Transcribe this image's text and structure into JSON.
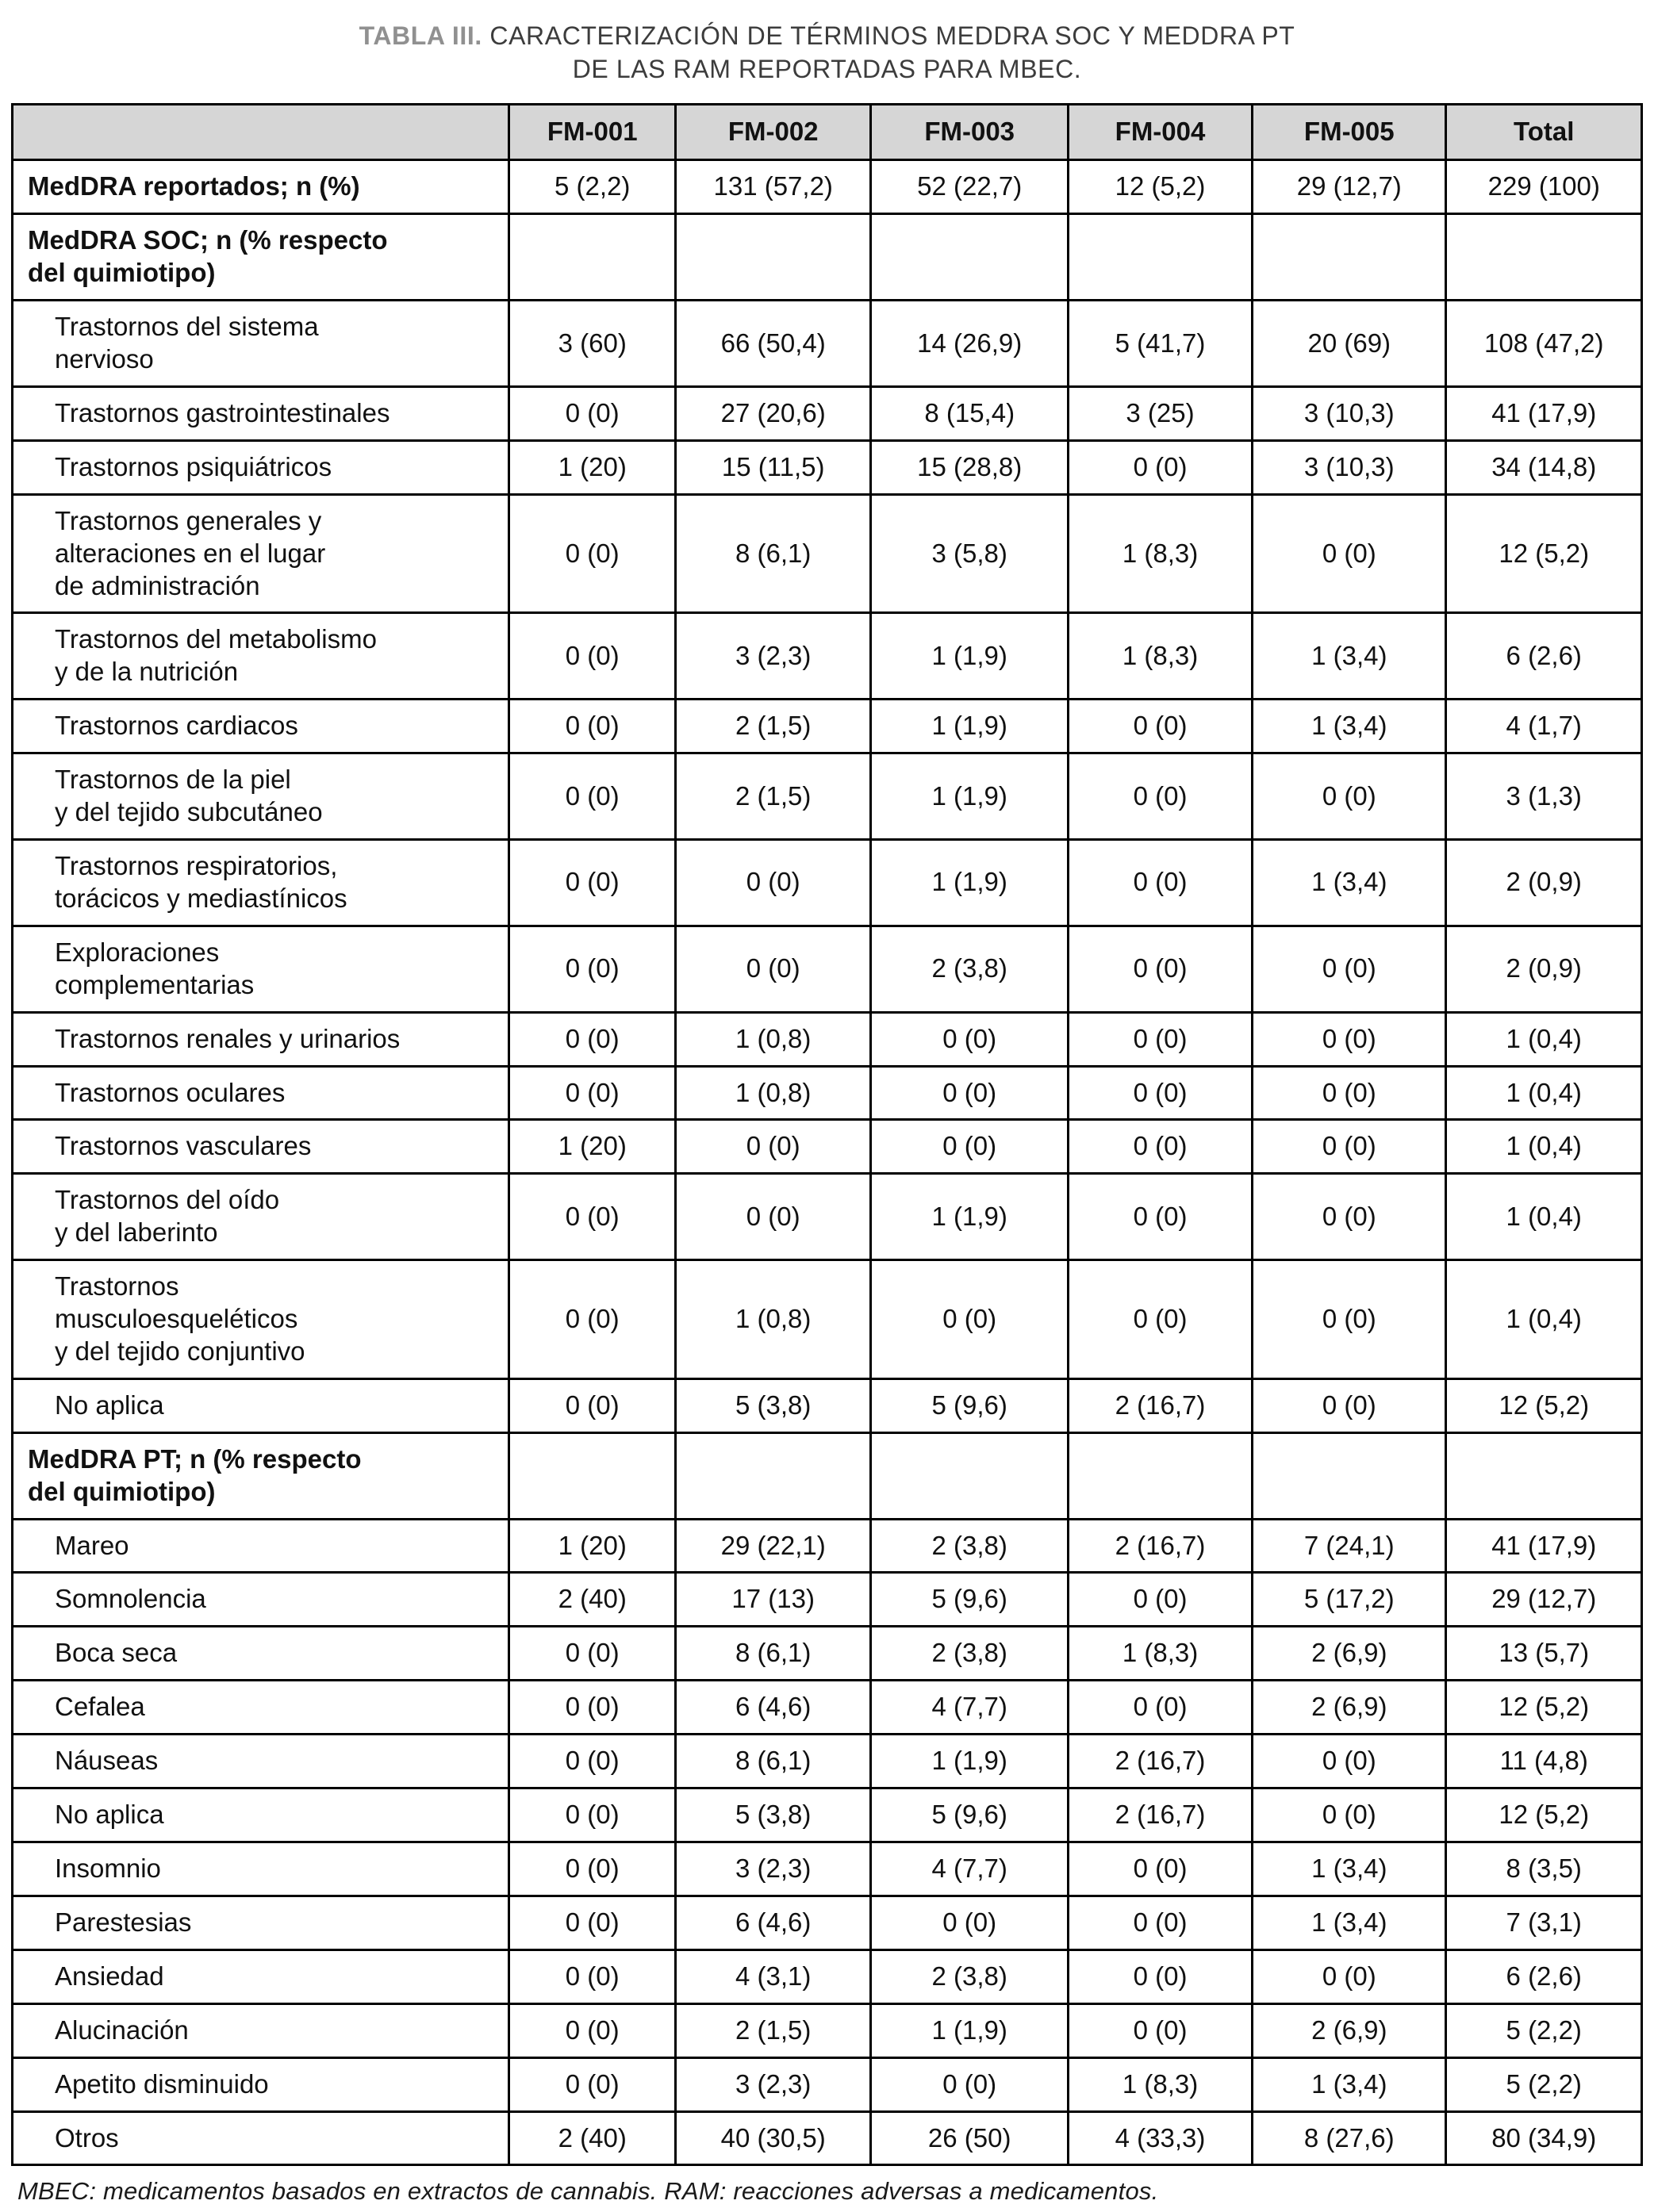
{
  "title": {
    "label": "TABLA III.",
    "line1": "CARACTERIZACIÓN DE TÉRMINOS MEDDRA SOC Y MEDDRA PT",
    "line2": "DE LAS RAM REPORTADAS PARA MBEC."
  },
  "footnote": "MBEC: medicamentos basados en extractos de cannabis. RAM: reacciones adversas a medicamentos.",
  "table": {
    "columns": [
      "",
      "FM-001",
      "FM-002",
      "FM-003",
      "FM-004",
      "FM-005",
      "Total"
    ],
    "rows": [
      {
        "type": "section",
        "label": "MedDRA reportados; n (%)",
        "values": [
          "5 (2,2)",
          "131 (57,2)",
          "52 (22,7)",
          "12 (5,2)",
          "29 (12,7)",
          "229 (100)"
        ]
      },
      {
        "type": "section",
        "label": "MedDRA SOC; n (% respecto\ndel quimiotipo)",
        "values": [
          "",
          "",
          "",
          "",
          "",
          ""
        ]
      },
      {
        "type": "data",
        "label": "Trastornos del sistema\nnervioso",
        "values": [
          "3 (60)",
          "66 (50,4)",
          "14 (26,9)",
          "5 (41,7)",
          "20 (69)",
          "108 (47,2)"
        ]
      },
      {
        "type": "data",
        "label": "Trastornos gastrointestinales",
        "values": [
          "0 (0)",
          "27 (20,6)",
          "8 (15,4)",
          "3 (25)",
          "3 (10,3)",
          "41 (17,9)"
        ]
      },
      {
        "type": "data",
        "label": "Trastornos psiquiátricos",
        "values": [
          "1 (20)",
          "15 (11,5)",
          "15 (28,8)",
          "0 (0)",
          "3 (10,3)",
          "34 (14,8)"
        ]
      },
      {
        "type": "data",
        "label": "Trastornos generales y\nalteraciones en el lugar\nde administración",
        "values": [
          "0 (0)",
          "8 (6,1)",
          "3 (5,8)",
          "1 (8,3)",
          "0 (0)",
          "12 (5,2)"
        ]
      },
      {
        "type": "data",
        "label": "Trastornos del metabolismo\ny de la nutrición",
        "values": [
          "0 (0)",
          "3 (2,3)",
          "1 (1,9)",
          "1 (8,3)",
          "1 (3,4)",
          "6 (2,6)"
        ]
      },
      {
        "type": "data",
        "label": "Trastornos cardiacos",
        "values": [
          "0 (0)",
          "2 (1,5)",
          "1 (1,9)",
          "0 (0)",
          "1 (3,4)",
          "4 (1,7)"
        ]
      },
      {
        "type": "data",
        "label": "Trastornos de la piel\ny del tejido subcutáneo",
        "values": [
          "0 (0)",
          "2 (1,5)",
          "1 (1,9)",
          "0 (0)",
          "0 (0)",
          "3 (1,3)"
        ]
      },
      {
        "type": "data",
        "label": "Trastornos respiratorios,\ntorácicos y mediastínicos",
        "values": [
          "0 (0)",
          "0 (0)",
          "1 (1,9)",
          "0 (0)",
          "1 (3,4)",
          "2 (0,9)"
        ]
      },
      {
        "type": "data",
        "label": "Exploraciones\ncomplementarias",
        "values": [
          "0 (0)",
          "0 (0)",
          "2 (3,8)",
          "0 (0)",
          "0 (0)",
          "2 (0,9)"
        ]
      },
      {
        "type": "data",
        "label": "Trastornos renales y urinarios",
        "values": [
          "0 (0)",
          "1 (0,8)",
          "0 (0)",
          "0 (0)",
          "0 (0)",
          "1 (0,4)"
        ]
      },
      {
        "type": "data",
        "label": "Trastornos oculares",
        "values": [
          "0 (0)",
          "1 (0,8)",
          "0 (0)",
          "0 (0)",
          "0 (0)",
          "1 (0,4)"
        ]
      },
      {
        "type": "data",
        "label": "Trastornos vasculares",
        "values": [
          "1 (20)",
          "0 (0)",
          "0 (0)",
          "0 (0)",
          "0 (0)",
          "1 (0,4)"
        ]
      },
      {
        "type": "data",
        "label": "Trastornos del oído\ny del laberinto",
        "values": [
          "0 (0)",
          "0 (0)",
          "1 (1,9)",
          "0 (0)",
          "0 (0)",
          "1 (0,4)"
        ]
      },
      {
        "type": "data",
        "label": "Trastornos\nmusculoesqueléticos\ny del tejido conjuntivo",
        "values": [
          "0 (0)",
          "1 (0,8)",
          "0 (0)",
          "0 (0)",
          "0 (0)",
          "1 (0,4)"
        ]
      },
      {
        "type": "data",
        "label": "No aplica",
        "values": [
          "0 (0)",
          "5 (3,8)",
          "5 (9,6)",
          "2 (16,7)",
          "0 (0)",
          "12 (5,2)"
        ]
      },
      {
        "type": "section",
        "label": "MedDRA PT; n (% respecto\ndel quimiotipo)",
        "values": [
          "",
          "",
          "",
          "",
          "",
          ""
        ]
      },
      {
        "type": "data",
        "label": "Mareo",
        "values": [
          "1 (20)",
          "29 (22,1)",
          "2 (3,8)",
          "2 (16,7)",
          "7 (24,1)",
          "41 (17,9)"
        ]
      },
      {
        "type": "data",
        "label": "Somnolencia",
        "values": [
          "2 (40)",
          "17 (13)",
          "5 (9,6)",
          "0 (0)",
          "5 (17,2)",
          "29 (12,7)"
        ]
      },
      {
        "type": "data",
        "label": "Boca seca",
        "values": [
          "0 (0)",
          "8 (6,1)",
          "2 (3,8)",
          "1 (8,3)",
          "2 (6,9)",
          "13 (5,7)"
        ]
      },
      {
        "type": "data",
        "label": "Cefalea",
        "values": [
          "0 (0)",
          "6 (4,6)",
          "4 (7,7)",
          "0 (0)",
          "2 (6,9)",
          "12 (5,2)"
        ]
      },
      {
        "type": "data",
        "label": "Náuseas",
        "values": [
          "0 (0)",
          "8 (6,1)",
          "1 (1,9)",
          "2 (16,7)",
          "0 (0)",
          "11 (4,8)"
        ]
      },
      {
        "type": "data",
        "label": "No aplica",
        "values": [
          "0 (0)",
          "5 (3,8)",
          "5 (9,6)",
          "2 (16,7)",
          "0 (0)",
          "12 (5,2)"
        ]
      },
      {
        "type": "data",
        "label": "Insomnio",
        "values": [
          "0 (0)",
          "3 (2,3)",
          "4 (7,7)",
          "0 (0)",
          "1 (3,4)",
          "8 (3,5)"
        ]
      },
      {
        "type": "data",
        "label": "Parestesias",
        "values": [
          "0 (0)",
          "6 (4,6)",
          "0 (0)",
          "0 (0)",
          "1 (3,4)",
          "7 (3,1)"
        ]
      },
      {
        "type": "data",
        "label": "Ansiedad",
        "values": [
          "0 (0)",
          "4 (3,1)",
          "2 (3,8)",
          "0 (0)",
          "0 (0)",
          "6 (2,6)"
        ]
      },
      {
        "type": "data",
        "label": "Alucinación",
        "values": [
          "0 (0)",
          "2 (1,5)",
          "1 (1,9)",
          "0 (0)",
          "2 (6,9)",
          "5 (2,2)"
        ]
      },
      {
        "type": "data",
        "label": "Apetito disminuido",
        "values": [
          "0 (0)",
          "3 (2,3)",
          "0 (0)",
          "1 (8,3)",
          "1 (3,4)",
          "5 (2,2)"
        ]
      },
      {
        "type": "data",
        "label": "Otros",
        "values": [
          "2 (40)",
          "40 (30,5)",
          "26 (50)",
          "4 (33,3)",
          "8 (27,6)",
          "80 (34,9)"
        ]
      }
    ]
  },
  "colors": {
    "header_background": "#d6d6d6",
    "border": "#000000",
    "title_label": "#909090",
    "title_text": "#3c3c3c"
  }
}
